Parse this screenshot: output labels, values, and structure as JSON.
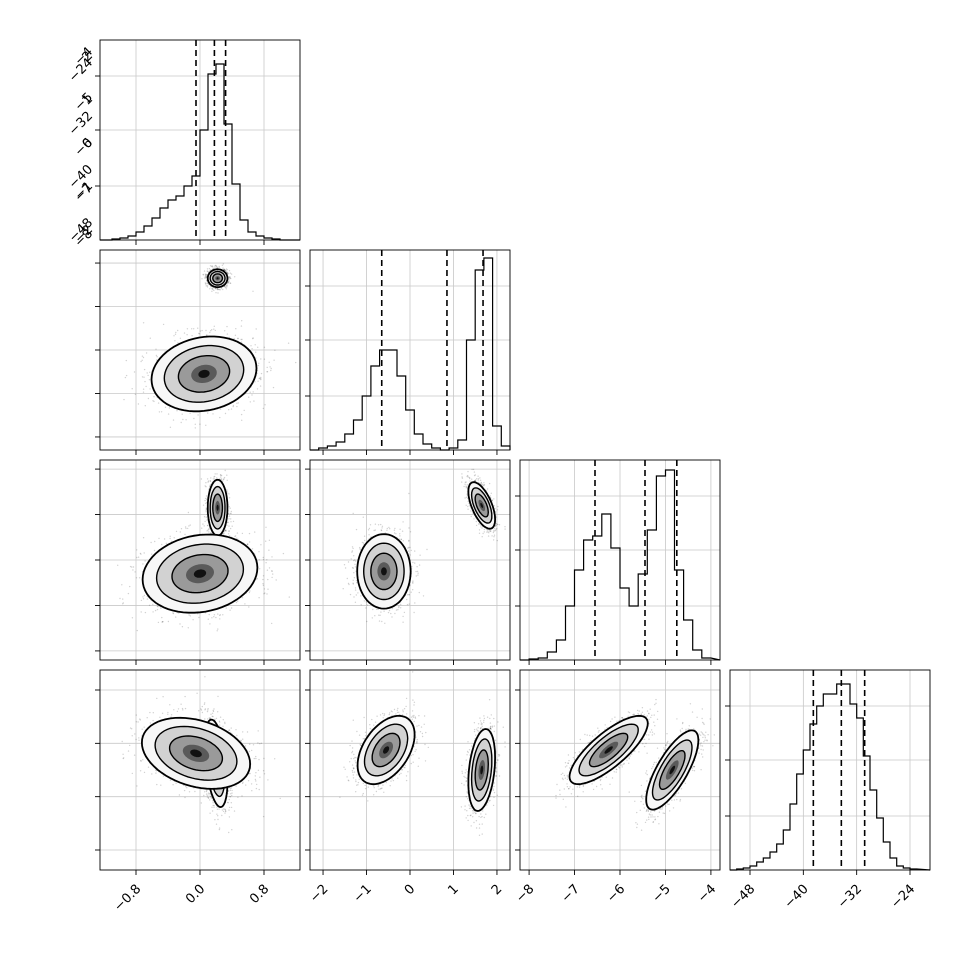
{
  "chart_data": {
    "type": "corner",
    "title": "",
    "parameters": [
      {
        "name": "",
        "range": [
          -1.25,
          1.25
        ],
        "ticks": [
          -0.8,
          0.0,
          0.8
        ],
        "tick_labels": [
          "−0.8",
          "0.0",
          "0.8"
        ],
        "quantiles": [
          -0.05,
          0.18,
          0.32
        ]
      },
      {
        "name": "",
        "range": [
          -2.3,
          2.3
        ],
        "ticks": [
          -2,
          -1,
          0,
          1,
          2
        ],
        "tick_labels": [
          "−2",
          "−1",
          "0",
          "1",
          "2"
        ],
        "quantiles": [
          -0.65,
          0.85,
          1.68
        ]
      },
      {
        "name": "",
        "range": [
          -8.2,
          -3.8
        ],
        "ticks": [
          -8,
          -7,
          -6,
          -5,
          -4
        ],
        "tick_labels": [
          "−8",
          "−7",
          "−6",
          "−5",
          "−4"
        ],
        "quantiles": [
          -6.55,
          -5.45,
          -4.75
        ]
      },
      {
        "name": "",
        "range": [
          -51,
          -21
        ],
        "ticks": [
          -48,
          -40,
          -32,
          -24
        ],
        "tick_labels": [
          "−48",
          "−40",
          "−32",
          "−24"
        ],
        "quantiles": [
          -38.5,
          -34.3,
          -30.8
        ]
      }
    ],
    "histograms": [
      {
        "param": 0,
        "bins": [
          -1.1,
          -1.0,
          -0.9,
          -0.8,
          -0.7,
          -0.6,
          -0.5,
          -0.4,
          -0.3,
          -0.2,
          -0.1,
          0.0,
          0.1,
          0.2,
          0.3,
          0.4,
          0.5,
          0.6,
          0.7,
          0.8,
          0.9,
          1.0,
          1.1
        ],
        "counts": [
          0.005,
          0.01,
          0.02,
          0.04,
          0.07,
          0.11,
          0.16,
          0.2,
          0.22,
          0.27,
          0.32,
          0.55,
          0.83,
          0.88,
          0.58,
          0.28,
          0.1,
          0.04,
          0.02,
          0.01,
          0.005,
          0.0
        ]
      },
      {
        "param": 1,
        "bins": [
          -2.3,
          -2.1,
          -1.9,
          -1.7,
          -1.5,
          -1.3,
          -1.1,
          -0.9,
          -0.7,
          -0.5,
          -0.3,
          -0.1,
          0.1,
          0.3,
          0.5,
          0.7,
          0.9,
          1.1,
          1.3,
          1.5,
          1.7,
          1.9,
          2.1,
          2.3
        ],
        "counts": [
          0.0,
          0.01,
          0.02,
          0.04,
          0.08,
          0.15,
          0.27,
          0.42,
          0.5,
          0.5,
          0.37,
          0.2,
          0.08,
          0.03,
          0.01,
          0.0,
          0.01,
          0.05,
          0.55,
          0.9,
          0.96,
          0.12,
          0.02
        ]
      },
      {
        "param": 2,
        "bins": [
          -8.0,
          -7.8,
          -7.6,
          -7.4,
          -7.2,
          -7.0,
          -6.8,
          -6.6,
          -6.4,
          -6.2,
          -6.0,
          -5.8,
          -5.6,
          -5.4,
          -5.2,
          -5.0,
          -4.8,
          -4.6,
          -4.4,
          -4.2,
          -4.0
        ],
        "counts": [
          0.005,
          0.01,
          0.04,
          0.1,
          0.27,
          0.45,
          0.6,
          0.62,
          0.73,
          0.56,
          0.36,
          0.27,
          0.43,
          0.65,
          0.92,
          0.95,
          0.45,
          0.2,
          0.05,
          0.01
        ]
      },
      {
        "param": 3,
        "bins": [
          -50,
          -49,
          -48,
          -47,
          -46,
          -45,
          -44,
          -43,
          -42,
          -41,
          -40,
          -39,
          -38,
          -37,
          -36,
          -35,
          -34,
          -33,
          -32,
          -31,
          -30,
          -29,
          -28,
          -27,
          -26,
          -25,
          -24,
          -23
        ],
        "counts": [
          0.005,
          0.01,
          0.02,
          0.04,
          0.06,
          0.09,
          0.13,
          0.2,
          0.33,
          0.48,
          0.6,
          0.73,
          0.82,
          0.88,
          0.88,
          0.93,
          0.93,
          0.83,
          0.76,
          0.57,
          0.4,
          0.26,
          0.14,
          0.06,
          0.02,
          0.01,
          0.005
        ]
      }
    ],
    "density_panels": [
      {
        "x": 0,
        "y": 1,
        "clusters": [
          {
            "center": [
              0.22,
              1.65
            ],
            "sx": 0.06,
            "sy": 0.1,
            "rho": 0.0,
            "weight": 0.5
          },
          {
            "center": [
              0.05,
              -0.55
            ],
            "sx": 0.32,
            "sy": 0.42,
            "rho": 0.15,
            "weight": 0.5
          }
        ]
      },
      {
        "x": 0,
        "y": 2,
        "clusters": [
          {
            "center": [
              0.22,
              -4.85
            ],
            "sx": 0.06,
            "sy": 0.3,
            "rho": 0.0,
            "weight": 0.5
          },
          {
            "center": [
              0.0,
              -6.3
            ],
            "sx": 0.35,
            "sy": 0.42,
            "rho": 0.15,
            "weight": 0.5
          }
        ]
      },
      {
        "x": 1,
        "y": 2,
        "clusters": [
          {
            "center": [
              1.65,
              -4.8
            ],
            "sx": 0.15,
            "sy": 0.25,
            "rho": -0.6,
            "weight": 0.5
          },
          {
            "center": [
              -0.6,
              -6.25
            ],
            "sx": 0.3,
            "sy": 0.4,
            "rho": 0.0,
            "weight": 0.5
          }
        ]
      },
      {
        "x": 0,
        "y": 3,
        "clusters": [
          {
            "center": [
              0.2,
              -35.0
            ],
            "sx": 0.07,
            "sy": 3.2,
            "rho": -0.4,
            "weight": 0.5
          },
          {
            "center": [
              -0.05,
              -33.5
            ],
            "sx": 0.33,
            "sy": 2.6,
            "rho": -0.3,
            "weight": 0.5
          }
        ]
      },
      {
        "x": 1,
        "y": 3,
        "clusters": [
          {
            "center": [
              1.65,
              -36.0
            ],
            "sx": 0.15,
            "sy": 3.0,
            "rho": 0.3,
            "weight": 0.5
          },
          {
            "center": [
              -0.55,
              -33.0
            ],
            "sx": 0.32,
            "sy": 2.5,
            "rho": 0.45,
            "weight": 0.5
          }
        ]
      },
      {
        "x": 2,
        "y": 3,
        "clusters": [
          {
            "center": [
              -4.85,
              -36.0
            ],
            "sx": 0.28,
            "sy": 2.9,
            "rho": 0.75,
            "weight": 0.5
          },
          {
            "center": [
              -6.25,
              -33.0
            ],
            "sx": 0.42,
            "sy": 2.5,
            "rho": 0.78,
            "weight": 0.5
          }
        ]
      }
    ],
    "grid": true,
    "quantile_lines": "dashed"
  }
}
